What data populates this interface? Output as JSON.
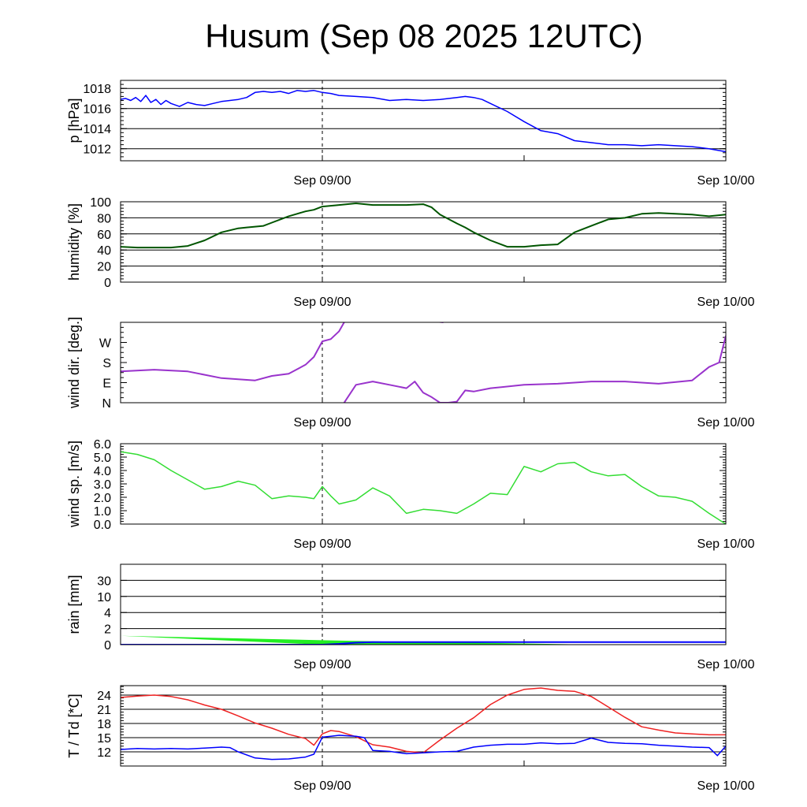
{
  "title": "Husum (Sep 08 2025 12UTC)",
  "chart_data": [
    {
      "type": "line",
      "id": "pressure",
      "ylabel": "p [hPa]",
      "ylim": [
        1010.8,
        1018.8
      ],
      "yticks": [
        1012,
        1014,
        1016,
        1018
      ],
      "ytick_labels": [
        "1012",
        "1014",
        "1016",
        "1018"
      ],
      "xlim": [
        0,
        36
      ],
      "xticks": [
        12,
        24,
        36
      ],
      "xtick_labels": [
        "Sep 09/00",
        "Sep 10/00"
      ],
      "xtick_label_positions": [
        12,
        36
      ],
      "vline": 12,
      "grid": "horizontal",
      "series": [
        {
          "color": "#0000ff",
          "kind": "line",
          "width": 1.5,
          "x": [
            0,
            0.3,
            0.6,
            0.9,
            1.2,
            1.5,
            1.8,
            2.1,
            2.4,
            2.7,
            3,
            3.5,
            4,
            4.5,
            5,
            5.5,
            6,
            6.5,
            7,
            7.5,
            8,
            8.5,
            9,
            9.5,
            10,
            10.5,
            11,
            11.5,
            12,
            12.5,
            13,
            14,
            15,
            16,
            17,
            18,
            19,
            20,
            20.5,
            21,
            21.5,
            22,
            22.5,
            23,
            24,
            25,
            26,
            27,
            28,
            29,
            30,
            31,
            32,
            33,
            34,
            35,
            36
          ],
          "values": [
            1016.9,
            1017,
            1016.8,
            1017.1,
            1016.7,
            1017.3,
            1016.6,
            1016.9,
            1016.4,
            1016.8,
            1016.5,
            1016.2,
            1016.6,
            1016.4,
            1016.3,
            1016.5,
            1016.7,
            1016.8,
            1016.9,
            1017.1,
            1017.6,
            1017.7,
            1017.6,
            1017.7,
            1017.5,
            1017.8,
            1017.7,
            1017.8,
            1017.6,
            1017.5,
            1017.3,
            1017.2,
            1017.1,
            1016.8,
            1016.9,
            1016.8,
            1016.9,
            1017.1,
            1017.2,
            1017.1,
            1016.9,
            1016.5,
            1016.1,
            1015.7,
            1014.7,
            1013.8,
            1013.5,
            1012.8,
            1012.6,
            1012.4,
            1012.4,
            1012.3,
            1012.4,
            1012.3,
            1012.2,
            1012,
            1011.7
          ]
        }
      ]
    },
    {
      "type": "line",
      "id": "humidity",
      "ylabel": "humidity [%]",
      "ylim": [
        0,
        100
      ],
      "yticks": [
        0,
        20,
        40,
        60,
        80,
        100
      ],
      "ytick_labels": [
        "0",
        "20",
        "40",
        "60",
        "80",
        "100"
      ],
      "xlim": [
        0,
        36
      ],
      "xticks": [
        12,
        24,
        36
      ],
      "xtick_labels": [
        "Sep 09/00",
        "Sep 10/00"
      ],
      "xtick_label_positions": [
        12,
        36
      ],
      "vline": 12,
      "grid": "horizontal",
      "series": [
        {
          "color": "#005500",
          "kind": "line",
          "width": 2,
          "x": [
            0,
            1,
            2,
            3,
            4,
            5,
            6,
            7,
            7.5,
            8,
            8.5,
            9,
            9.5,
            10,
            10.5,
            11,
            11.5,
            12,
            13,
            14,
            15,
            16,
            17,
            18,
            18.5,
            19,
            20,
            20.5,
            21,
            22,
            23,
            24,
            25,
            26,
            27,
            28,
            29,
            30,
            31,
            32,
            33,
            34,
            35,
            36
          ],
          "values": [
            44,
            43,
            43,
            43,
            45,
            52,
            62,
            67,
            68,
            69,
            70,
            74,
            78,
            82,
            85,
            88,
            90,
            94,
            96,
            98,
            96,
            96,
            96,
            97,
            93,
            84,
            73,
            68,
            62,
            52,
            44,
            44,
            46,
            47,
            62,
            70,
            78,
            80,
            85,
            86,
            85,
            84,
            82,
            84
          ]
        }
      ]
    },
    {
      "type": "line",
      "id": "wind-direction",
      "ylabel": "wind dir. [deg.]",
      "ylim": [
        0,
        360
      ],
      "yticks": [
        0,
        90,
        180,
        270
      ],
      "ytick_labels": [
        "N",
        "E",
        "S",
        "W"
      ],
      "xlim": [
        0,
        36
      ],
      "xticks": [
        12,
        24,
        36
      ],
      "xtick_labels": [
        "Sep 09/00",
        "Sep 10/00"
      ],
      "xtick_label_positions": [
        12,
        36
      ],
      "vline": 12,
      "grid": "none",
      "series": [
        {
          "color": "#9933cc",
          "kind": "line",
          "width": 2,
          "x": [
            0,
            2,
            4,
            6,
            8,
            9,
            10,
            11,
            11.5,
            12,
            12.5,
            13,
            13.3
          ],
          "values": [
            140,
            148,
            140,
            110,
            100,
            120,
            130,
            170,
            205,
            275,
            285,
            320,
            360
          ]
        },
        {
          "color": "#9933cc",
          "kind": "line",
          "width": 2,
          "x": [
            18.9,
            19.2
          ],
          "values": [
            362,
            360
          ]
        },
        {
          "color": "#9933cc",
          "kind": "line",
          "width": 2,
          "x": [
            13.3,
            14,
            15,
            16,
            17,
            17.5,
            18,
            18.5,
            19,
            19.5,
            20,
            20.5,
            21,
            22,
            24,
            26,
            28,
            30,
            32,
            34,
            35,
            35.6,
            36
          ],
          "values": [
            0,
            80,
            95,
            80,
            65,
            95,
            45,
            25,
            0,
            0,
            5,
            55,
            50,
            65,
            80,
            85,
            95,
            95,
            85,
            100,
            160,
            180,
            300
          ]
        }
      ]
    },
    {
      "type": "line",
      "id": "wind-speed",
      "ylabel": "wind sp. [m/s]",
      "ylim": [
        0,
        6
      ],
      "yticks": [
        0,
        1,
        2,
        3,
        4,
        5,
        6
      ],
      "ytick_labels": [
        "0.0",
        "1.0",
        "2.0",
        "3.0",
        "4.0",
        "5.0",
        "6.0"
      ],
      "xlim": [
        0,
        36
      ],
      "xticks": [
        12,
        24,
        36
      ],
      "xtick_labels": [
        "Sep 09/00",
        "Sep 10/00"
      ],
      "xtick_label_positions": [
        12,
        36
      ],
      "vline": 12,
      "grid": "none",
      "series": [
        {
          "color": "#33dd33",
          "kind": "line",
          "width": 1.5,
          "x": [
            0,
            1,
            2,
            3,
            4,
            5,
            6,
            7,
            8,
            9,
            10,
            11,
            11.5,
            12,
            12.5,
            13,
            14,
            15,
            16,
            17,
            18,
            19,
            20,
            21,
            22,
            23,
            24,
            25,
            26,
            27,
            28,
            29,
            30,
            31,
            32,
            33,
            34,
            35,
            36
          ],
          "values": [
            5.4,
            5.2,
            4.8,
            4.0,
            3.3,
            2.6,
            2.8,
            3.2,
            2.9,
            1.9,
            2.1,
            2.0,
            1.9,
            2.8,
            2.1,
            1.5,
            1.8,
            2.7,
            2.1,
            0.8,
            1.1,
            1.0,
            0.8,
            1.5,
            2.3,
            2.2,
            4.3,
            3.9,
            4.5,
            4.6,
            3.9,
            3.6,
            3.7,
            2.8,
            2.1,
            2.0,
            1.7,
            0.8,
            0.0
          ]
        }
      ]
    },
    {
      "type": "area",
      "id": "rain",
      "ylabel": "rain [mm]",
      "yscale": "nonlinear",
      "ylim": [
        0,
        30
      ],
      "yticks": [
        0,
        2,
        4,
        10,
        30
      ],
      "ytick_labels": [
        "0",
        "2",
        "4",
        "10",
        "30"
      ],
      "xlim": [
        0,
        36
      ],
      "xticks": [
        12,
        24,
        36
      ],
      "xtick_labels": [
        "Sep 09/00",
        "Sep 10/00"
      ],
      "xtick_label_positions": [
        12,
        36
      ],
      "vline": 12,
      "grid": "horizontal",
      "series": [
        {
          "color": "#22ee22",
          "kind": "band",
          "x": [
            0,
            12,
            16,
            20,
            24,
            28
          ],
          "upper": [
            1.1,
            0.55,
            0.38,
            0.28,
            0.15,
            0.0
          ],
          "lower": [
            1.1,
            0.0,
            0.0,
            0.0,
            0.0,
            0.0
          ]
        },
        {
          "color": "#0000ff",
          "kind": "line",
          "width": 2,
          "x": [
            0,
            10,
            12,
            13,
            14,
            15,
            36
          ],
          "values": [
            0,
            0,
            0,
            0.1,
            0.25,
            0.32,
            0.32
          ]
        }
      ]
    },
    {
      "type": "line",
      "id": "temperature-dewpoint",
      "ylabel": "T / Td [*C]",
      "ylim": [
        9,
        26
      ],
      "yticks": [
        12,
        15,
        18,
        21,
        24
      ],
      "ytick_labels": [
        "12",
        "15",
        "18",
        "21",
        "24"
      ],
      "xlim": [
        0,
        36
      ],
      "xticks": [
        12,
        24,
        36
      ],
      "xtick_labels": [
        "Sep 09/00",
        "Sep 10/00"
      ],
      "xtick_label_positions": [
        12,
        36
      ],
      "vline": 12,
      "grid": "horizontal",
      "series": [
        {
          "color": "#ee2222",
          "kind": "line",
          "width": 1.5,
          "x": [
            0,
            1,
            2,
            3,
            4,
            5,
            6,
            7,
            8,
            9,
            10,
            11,
            11.5,
            12,
            12.5,
            13,
            14,
            15,
            16,
            17,
            18,
            19,
            20,
            21,
            22,
            23,
            24,
            25,
            26,
            27,
            28,
            29,
            30,
            31,
            32,
            33,
            34,
            35,
            36
          ],
          "values": [
            23.5,
            23.8,
            24.0,
            23.7,
            23.0,
            21.9,
            21.0,
            19.6,
            18.1,
            17.0,
            15.7,
            14.8,
            13.4,
            15.8,
            16.5,
            16.3,
            15.2,
            13.5,
            13.0,
            12.1,
            11.8,
            14.5,
            17.0,
            19.2,
            22.0,
            24.0,
            25.2,
            25.5,
            25.0,
            24.8,
            23.7,
            21.5,
            19.3,
            17.3,
            16.6,
            16.0,
            15.8,
            15.6,
            15.6
          ]
        },
        {
          "color": "#0000ff",
          "kind": "line",
          "width": 1.5,
          "x": [
            0,
            1,
            2,
            3,
            4,
            5,
            6,
            6.5,
            7,
            8,
            9,
            10,
            11,
            11.5,
            12,
            12.5,
            13,
            14,
            14.5,
            15,
            16,
            17,
            18,
            19,
            20,
            21,
            22,
            23,
            24,
            25,
            26,
            27,
            28,
            29,
            30,
            31,
            32,
            33,
            34,
            35,
            35.5,
            36
          ],
          "values": [
            12.5,
            12.7,
            12.6,
            12.7,
            12.6,
            12.8,
            13.0,
            12.9,
            12.0,
            10.7,
            10.4,
            10.5,
            10.9,
            11.5,
            15.1,
            15.3,
            15.5,
            15.3,
            15.0,
            12.3,
            12.1,
            11.6,
            11.8,
            12.0,
            12.1,
            13.0,
            13.4,
            13.6,
            13.6,
            13.9,
            13.7,
            13.8,
            14.9,
            14.0,
            13.8,
            13.7,
            13.4,
            13.2,
            13.0,
            12.9,
            11.2,
            13.2
          ]
        }
      ]
    }
  ]
}
